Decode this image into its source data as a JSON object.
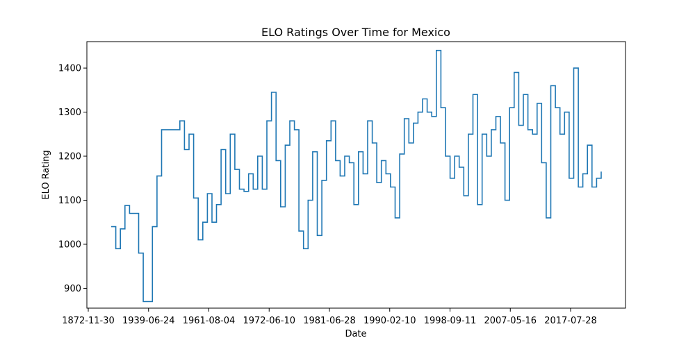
{
  "chart_data": {
    "type": "line",
    "title": "ELO Ratings Over Time for Mexico",
    "xlabel": "Date",
    "ylabel": "ELO Rating",
    "x_tick_labels": [
      "1872-11-30",
      "1939-06-24",
      "1961-08-04",
      "1972-06-10",
      "1981-06-28",
      "1990-02-10",
      "1998-09-11",
      "2007-05-16",
      "2017-07-28"
    ],
    "y_ticks": [
      900,
      1000,
      1100,
      1200,
      1300,
      1400
    ],
    "ylim": [
      855,
      1460
    ],
    "grid": false,
    "legend": "none",
    "line_color": "#1f77b4",
    "series": [
      {
        "x": [
          "1923-07-01",
          "1923-09-01",
          "1923-10-01",
          "1924-02-01",
          "1924-03-01",
          "1925-01-01",
          "1926-01-01",
          "1927-01-01",
          "1928-01-01",
          "1929-01-01",
          "1930-01-01",
          "1931-01-01",
          "1932-01-01",
          "1933-01-01",
          "1934-01-01",
          "1934-06-01",
          "1935-01-01",
          "1935-06-01",
          "1936-01-01",
          "1937-01-01",
          "1938-01-01",
          "1939-01-01",
          "1940-01-01",
          "1941-01-01",
          "1942-01-01",
          "1943-01-01",
          "1944-01-01",
          "1945-01-01",
          "1946-01-01",
          "1947-01-01",
          "1948-01-01",
          "1949-01-01",
          "1950-01-01",
          "1951-01-01",
          "1952-01-01",
          "1953-01-01",
          "1954-01-01",
          "1955-01-01",
          "1956-01-01",
          "1957-01-01",
          "1958-01-01",
          "1959-01-01",
          "1960-01-01",
          "1961-01-01",
          "1962-01-01",
          "1963-01-01",
          "1964-01-01",
          "1965-01-01",
          "1966-01-01",
          "1967-01-01",
          "1968-01-01",
          "1969-01-01",
          "1970-01-01",
          "1970-06-01",
          "1971-01-01",
          "1972-01-01",
          "1973-01-01",
          "1974-01-01",
          "1975-01-01",
          "1976-01-01",
          "1977-01-01",
          "1978-01-01",
          "1979-01-01",
          "1980-01-01",
          "1981-01-01",
          "1982-01-01",
          "1983-01-01",
          "1984-01-01",
          "1985-01-01",
          "1986-01-01",
          "1987-01-01",
          "1988-01-01",
          "1989-01-01",
          "1990-01-01",
          "1991-01-01",
          "1992-01-01",
          "1993-01-01",
          "1994-01-01",
          "1995-01-01",
          "1996-01-01",
          "1997-01-01",
          "1998-01-01",
          "1999-01-01",
          "2000-01-01",
          "2001-01-01",
          "2002-01-01",
          "2003-01-01",
          "2004-01-01",
          "2005-01-01",
          "2006-01-01",
          "2007-01-01",
          "2008-01-01",
          "2009-01-01",
          "2010-01-01",
          "2011-01-01",
          "2012-01-01",
          "2013-01-01",
          "2014-01-01",
          "2015-01-01",
          "2016-01-01",
          "2017-01-01",
          "2018-01-01",
          "2019-01-01",
          "2020-01-01",
          "2021-01-01",
          "2022-01-01",
          "2023-01-01",
          "2023-06-01"
        ],
        "y": [
          1040,
          990,
          1035,
          1088,
          1070,
          1070,
          980,
          870,
          870,
          1040,
          1155,
          1260,
          1260,
          1260,
          1260,
          1280,
          1215,
          1250,
          1105,
          1010,
          1050,
          1115,
          1050,
          1090,
          1215,
          1115,
          1250,
          1170,
          1125,
          1120,
          1160,
          1125,
          1200,
          1125,
          1280,
          1345,
          1190,
          1085,
          1225,
          1280,
          1260,
          1030,
          990,
          1100,
          1210,
          1020,
          1145,
          1235,
          1280,
          1190,
          1155,
          1200,
          1185,
          1090,
          1210,
          1160,
          1280,
          1230,
          1140,
          1190,
          1160,
          1130,
          1060,
          1205,
          1285,
          1230,
          1275,
          1300,
          1330,
          1300,
          1290,
          1440,
          1310,
          1200,
          1150,
          1200,
          1175,
          1110,
          1250,
          1340,
          1090,
          1250,
          1200,
          1260,
          1290,
          1230,
          1100,
          1310,
          1390,
          1270,
          1340,
          1260,
          1250,
          1320,
          1185,
          1060,
          1360,
          1310,
          1250,
          1300,
          1150,
          1400,
          1130,
          1160,
          1225,
          1130,
          1150,
          1165
        ]
      }
    ]
  }
}
